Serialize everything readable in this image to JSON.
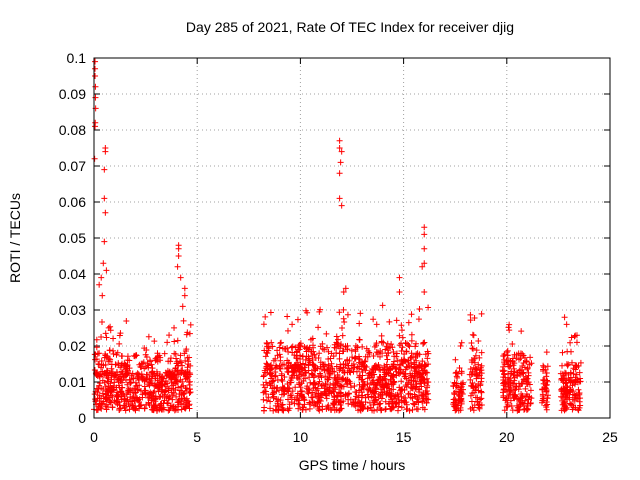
{
  "chart_data": {
    "type": "scatter",
    "title": "Day 285 of 2021, Rate Of TEC Index for receiver djig",
    "xlabel": "GPS time / hours",
    "ylabel": "ROTI / TECUs",
    "xlim": [
      0,
      25
    ],
    "ylim": [
      0,
      0.1
    ],
    "x_ticks": [
      "0",
      "5",
      "10",
      "15",
      "20",
      "25"
    ],
    "y_ticks": [
      "0",
      "0.01",
      "0.02",
      "0.03",
      "0.04",
      "0.05",
      "0.06",
      "0.07",
      "0.08",
      "0.09",
      "0.1"
    ],
    "grid": true,
    "marker": "+",
    "color": "#ff0000",
    "clusters": [
      {
        "x_start": 0.0,
        "x_end": 4.7,
        "y_base": 0.002,
        "y_typ": 0.013
      },
      {
        "x_start": 8.2,
        "x_end": 16.2,
        "y_base": 0.002,
        "y_typ": 0.015
      },
      {
        "x_start": 17.4,
        "x_end": 17.9,
        "y_base": 0.002,
        "y_typ": 0.01
      },
      {
        "x_start": 18.2,
        "x_end": 18.8,
        "y_base": 0.002,
        "y_typ": 0.014
      },
      {
        "x_start": 19.8,
        "x_end": 21.2,
        "y_base": 0.002,
        "y_typ": 0.013
      },
      {
        "x_start": 21.7,
        "x_end": 22.0,
        "y_base": 0.002,
        "y_typ": 0.011
      },
      {
        "x_start": 22.6,
        "x_end": 23.6,
        "y_base": 0.002,
        "y_typ": 0.011
      }
    ],
    "peaks": [
      {
        "x": 0.05,
        "y": 0.099
      },
      {
        "x": 0.05,
        "y": 0.097
      },
      {
        "x": 0.05,
        "y": 0.095
      },
      {
        "x": 0.07,
        "y": 0.092
      },
      {
        "x": 0.07,
        "y": 0.089
      },
      {
        "x": 0.08,
        "y": 0.086
      },
      {
        "x": 0.06,
        "y": 0.082
      },
      {
        "x": 0.05,
        "y": 0.081
      },
      {
        "x": 0.03,
        "y": 0.072
      },
      {
        "x": 0.55,
        "y": 0.075
      },
      {
        "x": 0.55,
        "y": 0.074
      },
      {
        "x": 0.5,
        "y": 0.069
      },
      {
        "x": 0.5,
        "y": 0.061
      },
      {
        "x": 0.55,
        "y": 0.057
      },
      {
        "x": 0.5,
        "y": 0.049
      },
      {
        "x": 0.45,
        "y": 0.043
      },
      {
        "x": 0.6,
        "y": 0.041
      },
      {
        "x": 0.35,
        "y": 0.039
      },
      {
        "x": 0.25,
        "y": 0.037
      },
      {
        "x": 0.4,
        "y": 0.034
      },
      {
        "x": 4.1,
        "y": 0.048
      },
      {
        "x": 4.1,
        "y": 0.047
      },
      {
        "x": 4.1,
        "y": 0.045
      },
      {
        "x": 4.05,
        "y": 0.042
      },
      {
        "x": 4.2,
        "y": 0.039
      },
      {
        "x": 4.4,
        "y": 0.036
      },
      {
        "x": 4.4,
        "y": 0.034
      },
      {
        "x": 4.3,
        "y": 0.031
      },
      {
        "x": 11.9,
        "y": 0.077
      },
      {
        "x": 11.9,
        "y": 0.075
      },
      {
        "x": 12.0,
        "y": 0.074
      },
      {
        "x": 11.95,
        "y": 0.071
      },
      {
        "x": 11.9,
        "y": 0.068
      },
      {
        "x": 11.9,
        "y": 0.061
      },
      {
        "x": 12.0,
        "y": 0.059
      },
      {
        "x": 16.0,
        "y": 0.053
      },
      {
        "x": 16.0,
        "y": 0.051
      },
      {
        "x": 16.0,
        "y": 0.047
      },
      {
        "x": 16.0,
        "y": 0.043
      },
      {
        "x": 15.9,
        "y": 0.042
      },
      {
        "x": 16.0,
        "y": 0.035
      },
      {
        "x": 14.8,
        "y": 0.039
      },
      {
        "x": 14.8,
        "y": 0.035
      },
      {
        "x": 12.2,
        "y": 0.036
      },
      {
        "x": 12.1,
        "y": 0.035
      },
      {
        "x": 18.4,
        "y": 0.023
      },
      {
        "x": 22.8,
        "y": 0.028
      },
      {
        "x": 22.9,
        "y": 0.026
      },
      {
        "x": 23.4,
        "y": 0.023
      },
      {
        "x": 23.4,
        "y": 0.021
      }
    ]
  }
}
